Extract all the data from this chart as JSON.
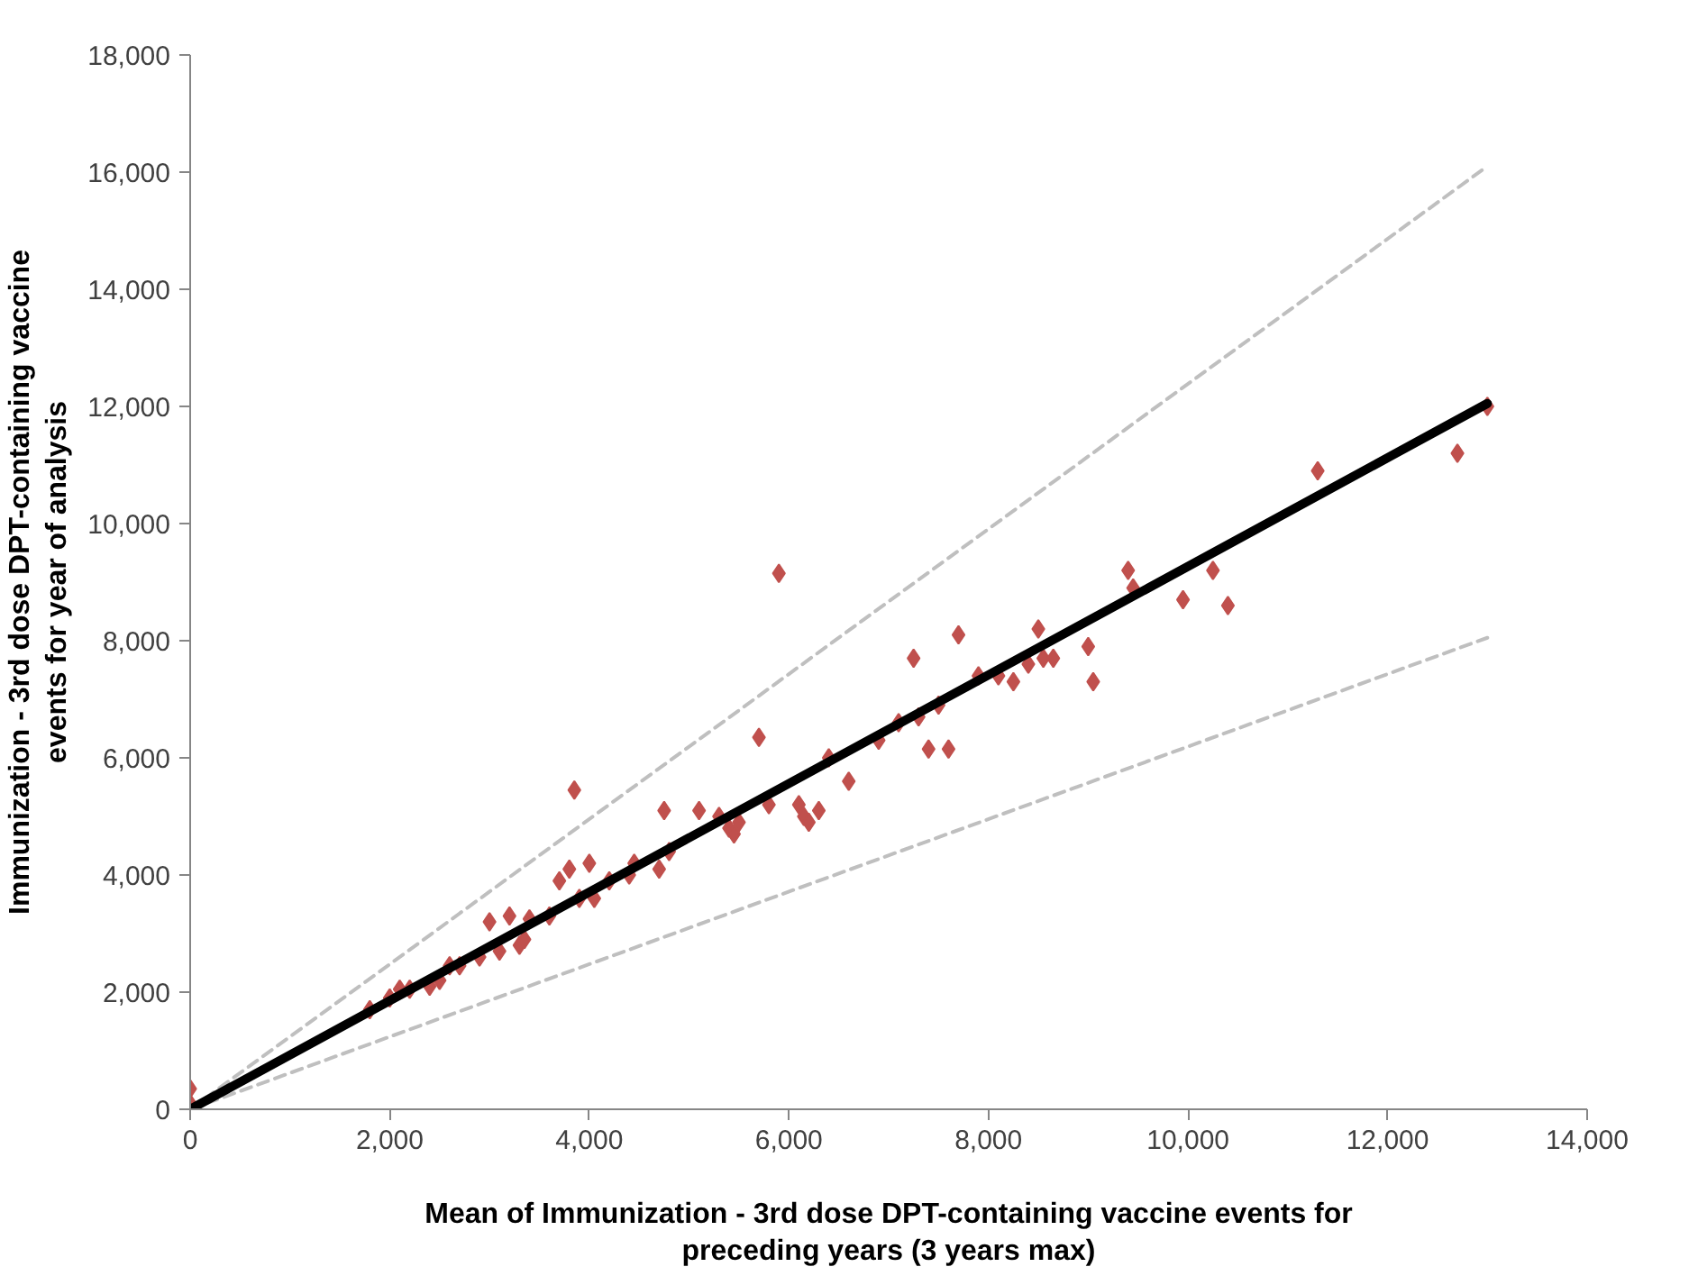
{
  "chart_data": {
    "type": "scatter",
    "xlabel": "Mean of Immunization - 3rd dose DPT-containing vaccine events for preceding years (3 years max)",
    "ylabel": "Immunization - 3rd dose DPT-containing vaccine events for year of analysis",
    "xlim": [
      0,
      14000
    ],
    "ylim": [
      0,
      18000
    ],
    "xticks": [
      0,
      {
        "value": 2000,
        "label": "2,000"
      },
      {
        "value": 4000,
        "label": "4,000"
      },
      {
        "value": 6000,
        "label": "6,000"
      },
      {
        "value": 8000,
        "label": "8,000"
      },
      {
        "value": 10000,
        "label": "10,000"
      },
      {
        "value": 12000,
        "label": "12,000"
      },
      {
        "value": 14000,
        "label": "14,000"
      }
    ],
    "yticks": [
      0,
      {
        "value": 2000,
        "label": "2,000"
      },
      {
        "value": 4000,
        "label": "4,000"
      },
      {
        "value": 6000,
        "label": "6,000"
      },
      {
        "value": 8000,
        "label": "8,000"
      },
      {
        "value": 10000,
        "label": "10,000"
      },
      {
        "value": 12000,
        "label": "12,000"
      },
      {
        "value": 14000,
        "label": "14,000"
      },
      {
        "value": 16000,
        "label": "16,000"
      },
      {
        "value": 18000,
        "label": "18,000"
      }
    ],
    "grid": false,
    "series": [
      {
        "type": "line",
        "color": "#bfbfbf",
        "line_style": "dashed",
        "marker": "none",
        "x": [
          0,
          13000
        ],
        "values": [
          0,
          16100
        ]
      },
      {
        "type": "line",
        "color": "#bfbfbf",
        "line_style": "dashed",
        "marker": "none",
        "x": [
          0,
          13000
        ],
        "values": [
          0,
          8050
        ]
      },
      {
        "color": "#c0504d",
        "marker": "diamond",
        "x": [
          0,
          0,
          1800,
          2000,
          2100,
          2200,
          2400,
          2500,
          2600,
          2700,
          2900,
          3000,
          3100,
          3200,
          3300,
          3350,
          3400,
          3600,
          3700,
          3800,
          3850,
          3900,
          4000,
          4050,
          4200,
          4400,
          4450,
          4700,
          4750,
          4800,
          5100,
          5300,
          5400,
          5450,
          5500,
          5700,
          5800,
          5900,
          6100,
          6150,
          6200,
          6300,
          6400,
          6600,
          6900,
          7100,
          7250,
          7300,
          7400,
          7500,
          7600,
          7700,
          7900,
          8100,
          8250,
          8400,
          8500,
          8550,
          8650,
          9000,
          9050,
          9400,
          9450,
          9950,
          10250,
          10400,
          11300,
          12700,
          13000
        ],
        "values": [
          350,
          100,
          1700,
          1900,
          2050,
          2050,
          2100,
          2200,
          2450,
          2450,
          2600,
          3200,
          2700,
          3300,
          2800,
          2900,
          3250,
          3300,
          3900,
          4100,
          5450,
          3600,
          4200,
          3600,
          3900,
          4000,
          4200,
          4100,
          5100,
          4400,
          5100,
          5000,
          4800,
          4700,
          4900,
          6350,
          5200,
          9150,
          5200,
          5000,
          4900,
          5100,
          6000,
          5600,
          6300,
          6600,
          7700,
          6700,
          6150,
          6900,
          6150,
          8100,
          7400,
          7400,
          7300,
          7600,
          8200,
          7700,
          7700,
          7900,
          7300,
          9200,
          8900,
          8700,
          9200,
          8600,
          10900,
          11200,
          12000
        ]
      },
      {
        "type": "line",
        "color": "#000000",
        "line_style": "solid",
        "marker": "none",
        "x": [
          0,
          13000
        ],
        "values": [
          0,
          12050
        ]
      }
    ]
  }
}
